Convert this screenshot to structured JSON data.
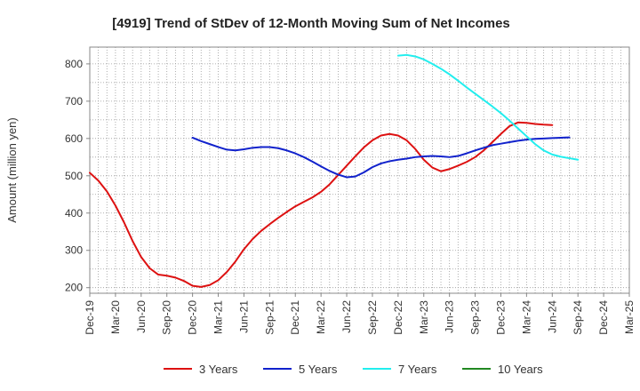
{
  "chart_data": {
    "type": "line",
    "title": "[4919]  Trend of StDev of 12-Month Moving Sum of Net Incomes",
    "xlabel": "",
    "ylabel": "Amount (million yen)",
    "ylim": [
      185,
      845
    ],
    "y_ticks": [
      200,
      300,
      400,
      500,
      600,
      700,
      800
    ],
    "x_ticks": [
      "Dec-19",
      "Mar-20",
      "Jun-20",
      "Sep-20",
      "Dec-20",
      "Mar-21",
      "Jun-21",
      "Sep-21",
      "Dec-21",
      "Mar-22",
      "Jun-22",
      "Sep-22",
      "Dec-22",
      "Mar-23",
      "Jun-23",
      "Sep-23",
      "Dec-23",
      "Mar-24",
      "Jun-24",
      "Sep-24",
      "Dec-24",
      "Mar-25"
    ],
    "grid": true,
    "legend_position": "bottom",
    "series": [
      {
        "name": "3 Years",
        "color": "#dd1111",
        "start_index": 0,
        "values": [
          508,
          487,
          458,
          420,
          375,
          325,
          282,
          252,
          235,
          232,
          227,
          218,
          205,
          202,
          207,
          220,
          242,
          270,
          303,
          330,
          352,
          370,
          387,
          403,
          418,
          430,
          442,
          457,
          477,
          502,
          527,
          552,
          576,
          595,
          608,
          612,
          608,
          595,
          572,
          543,
          522,
          512,
          518,
          527,
          537,
          550,
          568,
          590,
          612,
          633,
          643,
          642,
          639,
          637,
          636
        ]
      },
      {
        "name": "5 Years",
        "color": "#1122cc",
        "start_index": 12,
        "values": [
          602,
          593,
          585,
          577,
          570,
          568,
          571,
          575,
          577,
          577,
          574,
          568,
          560,
          550,
          538,
          525,
          513,
          503,
          496,
          498,
          509,
          523,
          533,
          539,
          543,
          546,
          550,
          552,
          553,
          552,
          550,
          553,
          560,
          568,
          575,
          582,
          586,
          590,
          594,
          597,
          599,
          600,
          601,
          602,
          603
        ]
      },
      {
        "name": "7 Years",
        "color": "#22eeee",
        "start_index": 36,
        "values": [
          822,
          824,
          820,
          812,
          800,
          787,
          772,
          755,
          737,
          720,
          703,
          686,
          668,
          648,
          627,
          606,
          585,
          568,
          557,
          551,
          547,
          543
        ]
      },
      {
        "name": "10 Years",
        "color": "#228822",
        "start_index": 0,
        "values": []
      }
    ]
  }
}
